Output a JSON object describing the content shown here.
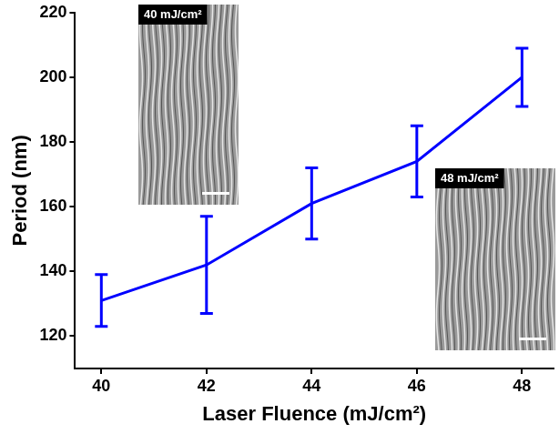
{
  "chart_data": {
    "type": "line",
    "x_label": "Laser Fluence (mJ/cm²)",
    "y_label": "Period (nm)",
    "x": [
      40,
      42,
      44,
      46,
      48
    ],
    "values": [
      131,
      142,
      161,
      174,
      200
    ],
    "errors": [
      8,
      15,
      11,
      11,
      9
    ],
    "color": "#0000ff",
    "marker": "none",
    "line_style": "solid",
    "xlim": [
      39.5,
      48.6
    ],
    "xticks": [
      40,
      42,
      44,
      46,
      48
    ],
    "ylim": [
      110,
      220
    ],
    "yticks": [
      120,
      140,
      160,
      180,
      200,
      220
    ],
    "grid": false,
    "annotations": [
      "40 mJ/cm²",
      "48 mJ/cm²"
    ]
  }
}
